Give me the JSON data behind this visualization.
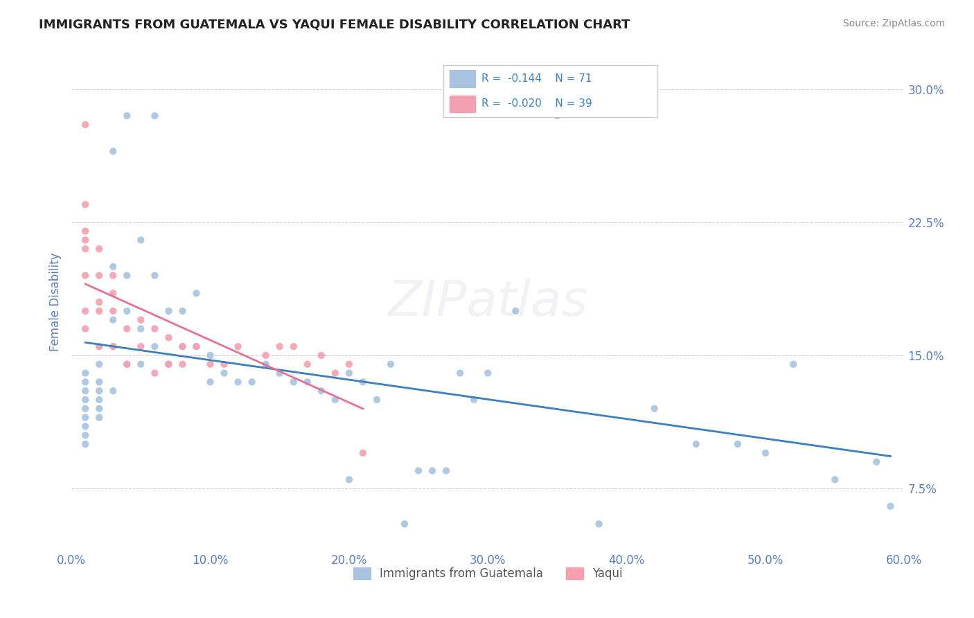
{
  "title": "IMMIGRANTS FROM GUATEMALA VS YAQUI FEMALE DISABILITY CORRELATION CHART",
  "source_text": "Source: ZipAtlas.com",
  "xlabel": "",
  "ylabel": "Female Disability",
  "xlim": [
    0.0,
    0.6
  ],
  "ylim": [
    0.04,
    0.32
  ],
  "yticks": [
    0.075,
    0.15,
    0.225,
    0.3
  ],
  "ytick_labels": [
    "7.5%",
    "15.0%",
    "22.5%",
    "30.0%"
  ],
  "xticks": [
    0.0,
    0.1,
    0.2,
    0.3,
    0.4,
    0.5,
    0.6
  ],
  "xtick_labels": [
    "0.0%",
    "10.0%",
    "20.0%",
    "30.0%",
    "40.0%",
    "50.0%",
    "60.0%"
  ],
  "series1_color": "#a8c4e0",
  "series2_color": "#f4a0b0",
  "line1_color": "#3a7fc1",
  "line2_color": "#e87090",
  "series1_label": "Immigrants from Guatemala",
  "series2_label": "Yaqui",
  "R1": "-0.144",
  "N1": "71",
  "R2": "-0.020",
  "N2": "39",
  "legend_text_color": "#3a7fc1",
  "title_color": "#222222",
  "axis_color": "#5a7fc1",
  "watermark": "ZIPatlas",
  "background_color": "#ffffff",
  "grid_color": "#cccccc",
  "scatter1_x": [
    0.01,
    0.01,
    0.01,
    0.01,
    0.01,
    0.01,
    0.01,
    0.01,
    0.01,
    0.02,
    0.02,
    0.02,
    0.02,
    0.02,
    0.02,
    0.02,
    0.03,
    0.03,
    0.03,
    0.03,
    0.03,
    0.04,
    0.04,
    0.04,
    0.04,
    0.05,
    0.05,
    0.05,
    0.06,
    0.06,
    0.06,
    0.07,
    0.07,
    0.08,
    0.08,
    0.09,
    0.09,
    0.1,
    0.1,
    0.11,
    0.12,
    0.13,
    0.14,
    0.15,
    0.16,
    0.17,
    0.18,
    0.19,
    0.2,
    0.2,
    0.21,
    0.22,
    0.23,
    0.24,
    0.25,
    0.26,
    0.27,
    0.28,
    0.29,
    0.3,
    0.32,
    0.35,
    0.38,
    0.42,
    0.45,
    0.48,
    0.5,
    0.52,
    0.55,
    0.58,
    0.59
  ],
  "scatter1_y": [
    0.13,
    0.14,
    0.135,
    0.125,
    0.12,
    0.115,
    0.11,
    0.105,
    0.1,
    0.155,
    0.145,
    0.135,
    0.13,
    0.125,
    0.12,
    0.115,
    0.265,
    0.2,
    0.17,
    0.155,
    0.13,
    0.285,
    0.195,
    0.175,
    0.145,
    0.215,
    0.165,
    0.145,
    0.285,
    0.195,
    0.155,
    0.175,
    0.145,
    0.175,
    0.155,
    0.185,
    0.155,
    0.15,
    0.135,
    0.14,
    0.135,
    0.135,
    0.145,
    0.14,
    0.135,
    0.135,
    0.13,
    0.125,
    0.14,
    0.08,
    0.135,
    0.125,
    0.145,
    0.055,
    0.085,
    0.085,
    0.085,
    0.14,
    0.125,
    0.14,
    0.175,
    0.285,
    0.055,
    0.12,
    0.1,
    0.1,
    0.095,
    0.145,
    0.08,
    0.09,
    0.065
  ],
  "scatter2_x": [
    0.01,
    0.01,
    0.01,
    0.01,
    0.01,
    0.01,
    0.01,
    0.01,
    0.02,
    0.02,
    0.02,
    0.02,
    0.02,
    0.03,
    0.03,
    0.03,
    0.03,
    0.04,
    0.04,
    0.05,
    0.05,
    0.06,
    0.06,
    0.07,
    0.07,
    0.08,
    0.08,
    0.09,
    0.1,
    0.11,
    0.12,
    0.14,
    0.15,
    0.16,
    0.17,
    0.18,
    0.19,
    0.2,
    0.21
  ],
  "scatter2_y": [
    0.28,
    0.235,
    0.22,
    0.215,
    0.21,
    0.195,
    0.175,
    0.165,
    0.21,
    0.195,
    0.18,
    0.175,
    0.155,
    0.195,
    0.185,
    0.175,
    0.155,
    0.165,
    0.145,
    0.17,
    0.155,
    0.165,
    0.14,
    0.16,
    0.145,
    0.155,
    0.145,
    0.155,
    0.145,
    0.145,
    0.155,
    0.15,
    0.155,
    0.155,
    0.145,
    0.15,
    0.14,
    0.145,
    0.095
  ]
}
